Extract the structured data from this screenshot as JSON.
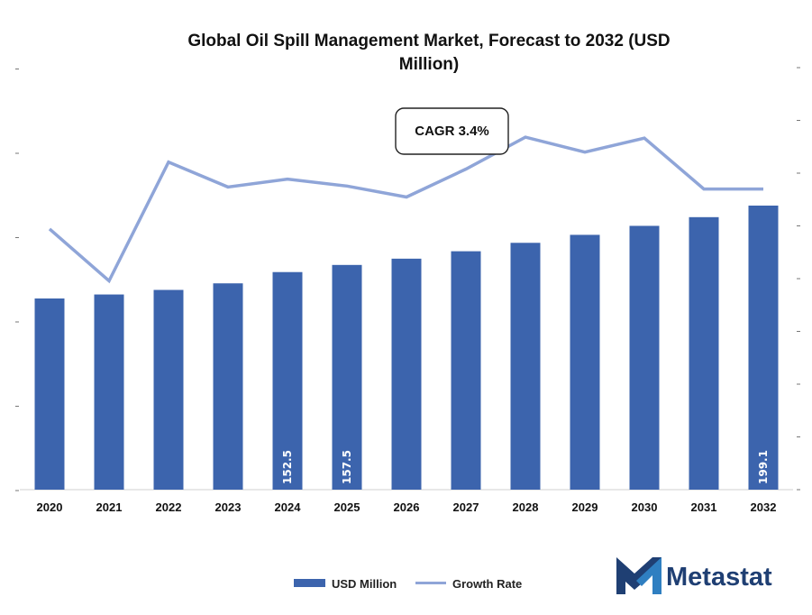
{
  "chart_data": {
    "type": "bar",
    "title_line1": "Global Oil Spill Management Market, Forecast to 2032 (USD",
    "title_line2": "Million)",
    "categories": [
      "2020",
      "2021",
      "2022",
      "2023",
      "2024",
      "2025",
      "2026",
      "2027",
      "2028",
      "2029",
      "2030",
      "2031",
      "2032"
    ],
    "series": [
      {
        "name": "USD Million",
        "type": "bar",
        "axis": "left",
        "values": [
          134.0,
          136.8,
          140.0,
          144.6,
          152.5,
          157.5,
          161.9,
          167.1,
          173.0,
          178.6,
          184.9,
          191.0,
          199.1
        ],
        "data_labels": [
          null,
          null,
          null,
          null,
          "152.5",
          "157.5",
          null,
          null,
          null,
          null,
          null,
          null,
          "199.1"
        ]
      },
      {
        "name": "Growth Rate",
        "type": "line",
        "axis": "right",
        "values": [
          2.61,
          2.09,
          3.28,
          3.03,
          3.11,
          3.04,
          2.93,
          3.21,
          3.53,
          3.38,
          3.52,
          3.01,
          3.01
        ]
      }
    ],
    "ylim_left": [
      0,
      280
    ],
    "ylim_right": [
      0,
      4
    ],
    "annotation": "CAGR 3.4%",
    "legend_position": "bottom-center",
    "grid": false,
    "colors": {
      "bar": "#3c64ad",
      "line": "#8fa5d8"
    }
  },
  "logo": {
    "text": "Metastat",
    "icon": "metastat-m-logo-icon"
  }
}
